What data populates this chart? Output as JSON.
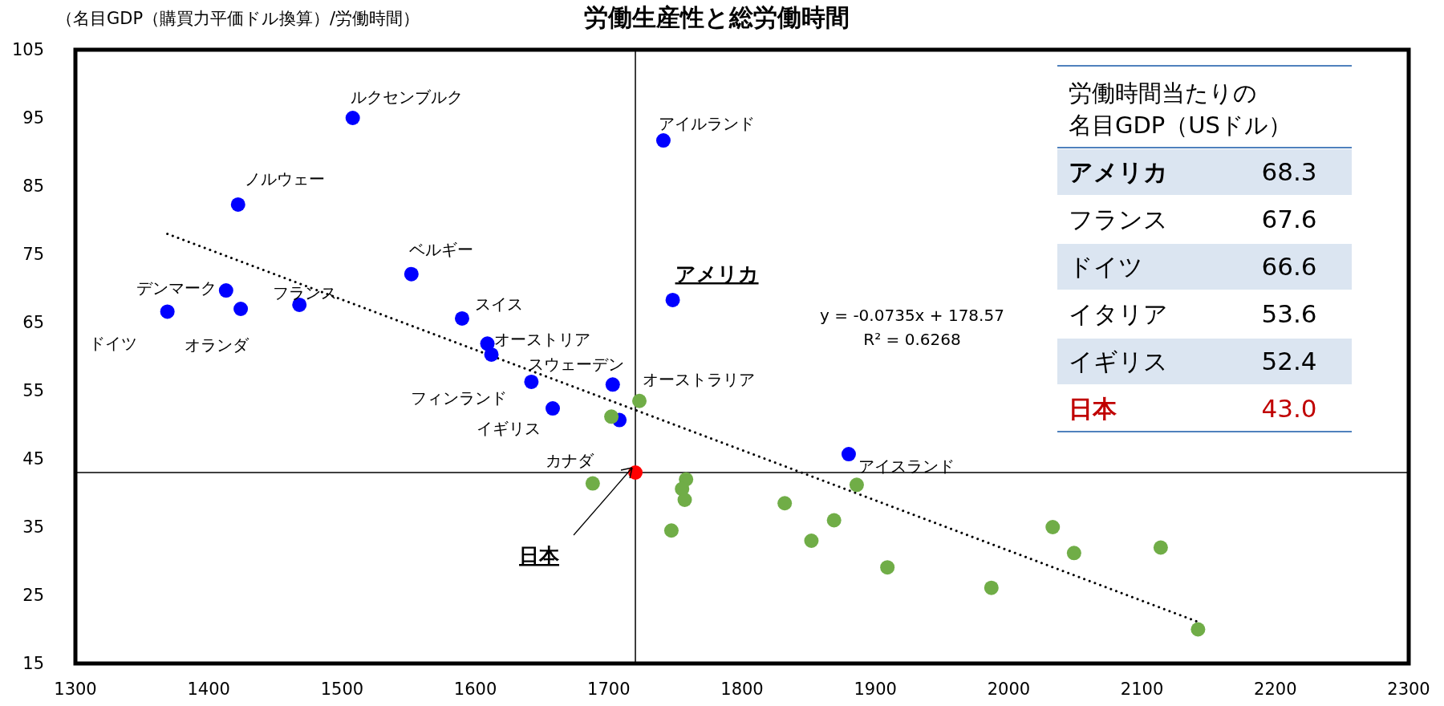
{
  "chart_data": [
    {
      "type": "scatter",
      "title": "労働生産性と総労働時間",
      "ylabel": "（名目GDP（購買力平価ドル換算）/労働時間）",
      "xlim": [
        1300,
        2300
      ],
      "xticks": [
        1300,
        1400,
        1500,
        1600,
        1700,
        1800,
        1900,
        2000,
        2100,
        2200,
        2300
      ],
      "ylim": [
        15,
        105
      ],
      "yticks": [
        15,
        25,
        35,
        45,
        55,
        65,
        75,
        85,
        95,
        105
      ],
      "grid": false,
      "marker": "circle",
      "series": [
        {
          "color": "#0000ff",
          "x": [
            1369,
            1413,
            1424,
            1422,
            1468,
            1508,
            1552,
            1590,
            1609,
            1612,
            1642,
            1703,
            1658,
            1708,
            1741,
            1748,
            1880
          ],
          "values": [
            66.6,
            69.7,
            67.0,
            82.3,
            67.6,
            95.0,
            72.1,
            65.6,
            61.9,
            60.3,
            56.3,
            55.9,
            52.4,
            50.7,
            91.7,
            68.3,
            45.7
          ]
        },
        {
          "color": "#70ad47",
          "x": [
            1702,
            1723,
            1688,
            1758,
            1755,
            1757,
            1747,
            1832,
            1869,
            1852,
            1886,
            1909,
            1987,
            2033,
            2049,
            2114,
            2142
          ],
          "values": [
            51.2,
            53.5,
            41.4,
            42.0,
            40.6,
            39.0,
            34.5,
            38.5,
            36.0,
            33.0,
            41.2,
            29.1,
            26.1,
            35.0,
            31.2,
            32.0,
            20.0
          ]
        },
        {
          "color": "#ff0000",
          "x": [
            1720
          ],
          "values": [
            43.0
          ]
        },
        {
          "type": "line",
          "line_style": "dotted",
          "marker": "none",
          "color": "#000000",
          "x": [
            1369,
            2142
          ],
          "values": [
            78.0,
            21.1
          ]
        }
      ],
      "ref_lines": [
        {
          "axis": "x",
          "value": 1720,
          "color": "#000000"
        },
        {
          "axis": "y",
          "value": 43.0,
          "color": "#000000"
        }
      ],
      "annotations": [
        {
          "text": "ドイツ",
          "x": 1369,
          "y": 66.6
        },
        {
          "text": "デンマーク",
          "x": 1413,
          "y": 69.7
        },
        {
          "text": "オランダ",
          "x": 1424,
          "y": 67.0
        },
        {
          "text": "ノルウェー",
          "x": 1422,
          "y": 82.3
        },
        {
          "text": "フランス",
          "x": 1468,
          "y": 67.6
        },
        {
          "text": "ルクセンブルク",
          "x": 1508,
          "y": 95.0
        },
        {
          "text": "ベルギー",
          "x": 1552,
          "y": 72.1
        },
        {
          "text": "スイス",
          "x": 1590,
          "y": 65.6
        },
        {
          "text": "オーストリア",
          "x": 1609,
          "y": 61.9
        },
        {
          "text": "スウェーデン",
          "x": 1703,
          "y": 55.9
        },
        {
          "text": "フィンランド",
          "x": 1642,
          "y": 56.3
        },
        {
          "text": "イギリス",
          "x": 1658,
          "y": 52.4
        },
        {
          "text": "カナダ",
          "x": 1708,
          "y": 50.7
        },
        {
          "text": "アイルランド",
          "x": 1741,
          "y": 91.7
        },
        {
          "text": "アメリカ",
          "x": 1748,
          "y": 68.3
        },
        {
          "text": "アイスランド",
          "x": 1880,
          "y": 45.7
        },
        {
          "text": "オーストラリア",
          "x": 1723,
          "y": 53.5
        },
        {
          "text": "日本",
          "x": 1720,
          "y": 43.0
        },
        "y = -0.0735x + 178.57",
        "R² = 0.6268"
      ]
    },
    {
      "type": "other",
      "title": "労働時間当たりの",
      "subtitle": "名目GDP（USドル）",
      "annotations": [
        "アメリカ",
        "68.3",
        "フランス",
        "67.6",
        "ドイツ",
        "66.6",
        "イタリア",
        "53.6",
        "イギリス",
        "52.4",
        "日本",
        "43.0"
      ]
    }
  ]
}
